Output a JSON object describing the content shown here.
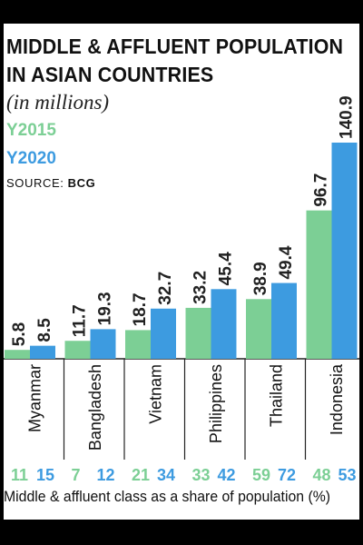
{
  "title_line1": "MIDDLE & AFFLUENT POPULATION",
  "title_line2": "IN ASIAN COUNTRIES",
  "subtitle": "(in millions)",
  "legend_2015": "Y2015",
  "legend_2020": "Y2020",
  "source_label": "SOURCE:",
  "source_value": "BCG",
  "footnote": "Middle & affluent class as a share of population (%)",
  "colors": {
    "y2015": "#7ccf95",
    "y2020": "#3d9be0"
  },
  "chart_data": {
    "type": "bar",
    "title": "MIDDLE & AFFLUENT POPULATION IN ASIAN COUNTRIES",
    "subtitle": "(in millions)",
    "categories": [
      "Myanmar",
      "Bangladesh",
      "Vietnam",
      "Philippines",
      "Thailand",
      "Indonesia"
    ],
    "series": [
      {
        "name": "Y2015",
        "values": [
          5.8,
          11.7,
          18.7,
          33.2,
          38.9,
          96.7
        ],
        "labels": [
          "5.8",
          "11.7",
          "18.7",
          "33.2",
          "38.9",
          "96.7"
        ]
      },
      {
        "name": "Y2020",
        "values": [
          8.5,
          19.3,
          32.7,
          45.4,
          49.4,
          140.9
        ],
        "labels": [
          "8.5",
          "19.3",
          "32.7",
          "45.4",
          "49.4",
          "140.9"
        ]
      }
    ],
    "share_of_population": {
      "label": "Middle & affluent class as a share of population (%)",
      "y2015": [
        "11",
        "7",
        "21",
        "33",
        "59",
        "48"
      ],
      "y2020": [
        "15",
        "12",
        "34",
        "42",
        "72",
        "53"
      ]
    },
    "ylim": [
      0,
      140.9
    ],
    "grid": false,
    "legend": "top-left"
  }
}
